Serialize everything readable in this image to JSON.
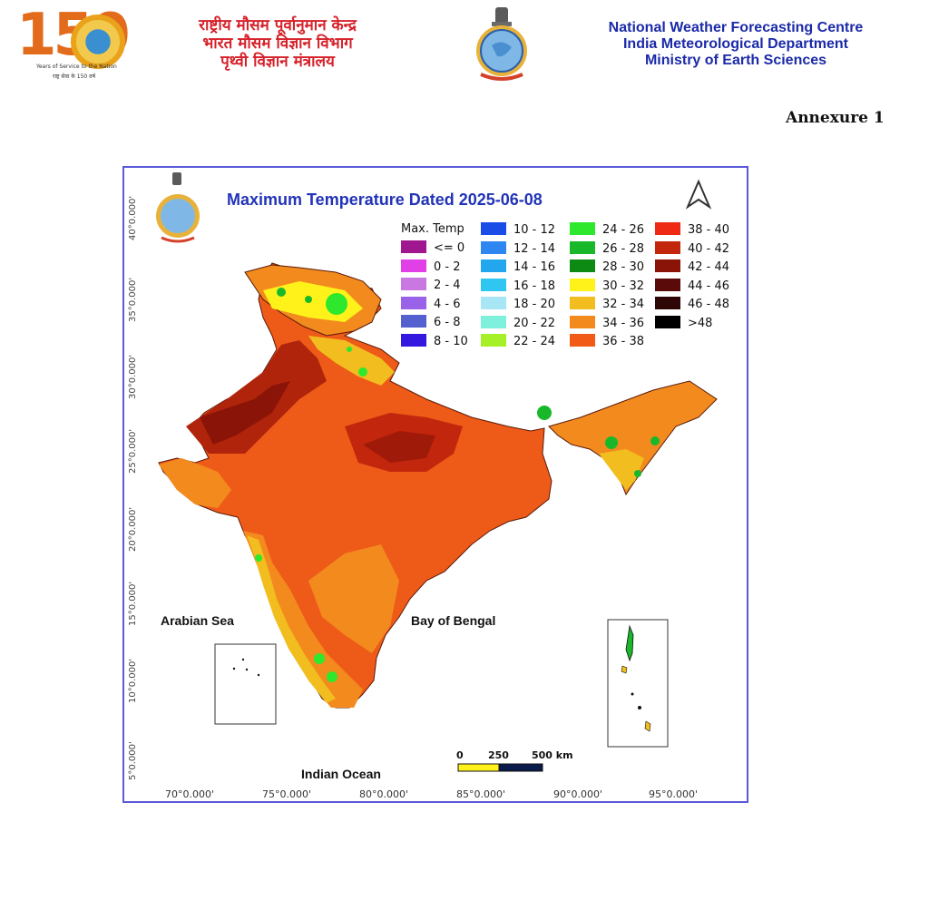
{
  "header": {
    "logo_number": "150",
    "logo_caption": "Years of Service to the Nation",
    "logo_caption_hindi": "राष्ट्र सेवा के 150 वर्ष",
    "hindi_lines": [
      "राष्ट्रीय मौसम पूर्वानुमान केन्द्र",
      "भारत मौसम विज्ञान विभाग",
      "पृथ्वी विज्ञान मंत्रालय"
    ],
    "english_lines": [
      "National Weather Forecasting Centre",
      "India Meteorological Department",
      "Ministry of Earth Sciences"
    ],
    "annexure": "Annexure 1"
  },
  "map": {
    "title": "Maximum Temperature Dated 2025-06-08",
    "legend_title": "Max. Temp",
    "legend": [
      {
        "label": "<= 0",
        "color": "#a0178f"
      },
      {
        "label": "0 - 2",
        "color": "#e040e6"
      },
      {
        "label": "2 - 4",
        "color": "#c878e0"
      },
      {
        "label": "4 - 6",
        "color": "#9a62e8"
      },
      {
        "label": "6 - 8",
        "color": "#5560d0"
      },
      {
        "label": "8 - 10",
        "color": "#3318e0"
      },
      {
        "label": "10 - 12",
        "color": "#1a4de8"
      },
      {
        "label": "12 - 14",
        "color": "#2e86f0"
      },
      {
        "label": "14 - 16",
        "color": "#22a6ee"
      },
      {
        "label": "16 - 18",
        "color": "#30c6f2"
      },
      {
        "label": "18 - 20",
        "color": "#a8e6f6"
      },
      {
        "label": "20 - 22",
        "color": "#7ef0dc"
      },
      {
        "label": "22 - 24",
        "color": "#a6f028"
      },
      {
        "label": "24 - 26",
        "color": "#2ee82e"
      },
      {
        "label": "26 - 28",
        "color": "#18b82a"
      },
      {
        "label": "28 - 30",
        "color": "#0c8a14"
      },
      {
        "label": "30 - 32",
        "color": "#fff21a"
      },
      {
        "label": "32 - 34",
        "color": "#f2bd1e"
      },
      {
        "label": "34 - 36",
        "color": "#f28a1e"
      },
      {
        "label": "36 - 38",
        "color": "#f25a18"
      },
      {
        "label": "38 - 40",
        "color": "#ee2a14"
      },
      {
        "label": "40 - 42",
        "color": "#c2260c"
      },
      {
        "label": "42 - 44",
        "color": "#8a1408"
      },
      {
        "label": "44 - 46",
        "color": "#5a0a08"
      },
      {
        "label": "46 - 48",
        "color": "#2e0606"
      },
      {
        "label": ">48",
        "color": "#000000"
      }
    ],
    "seas": {
      "arabian": "Arabian Sea",
      "bengal": "Bay of Bengal",
      "indian": "Indian Ocean"
    },
    "latitudes": [
      "40°0.000'",
      "35°0.000'",
      "30°0.000'",
      "25°0.000'",
      "20°0.000'",
      "15°0.000'",
      "10°0.000'",
      "5°0.000'"
    ],
    "longitudes": [
      "70°0.000'",
      "75°0.000'",
      "80°0.000'",
      "85°0.000'",
      "90°0.000'",
      "95°0.000'"
    ],
    "scale": {
      "labels": [
        "0",
        "250",
        "500 km"
      ]
    },
    "colors": {
      "frame": "#5a5ad8",
      "title": "#2233b8"
    }
  }
}
